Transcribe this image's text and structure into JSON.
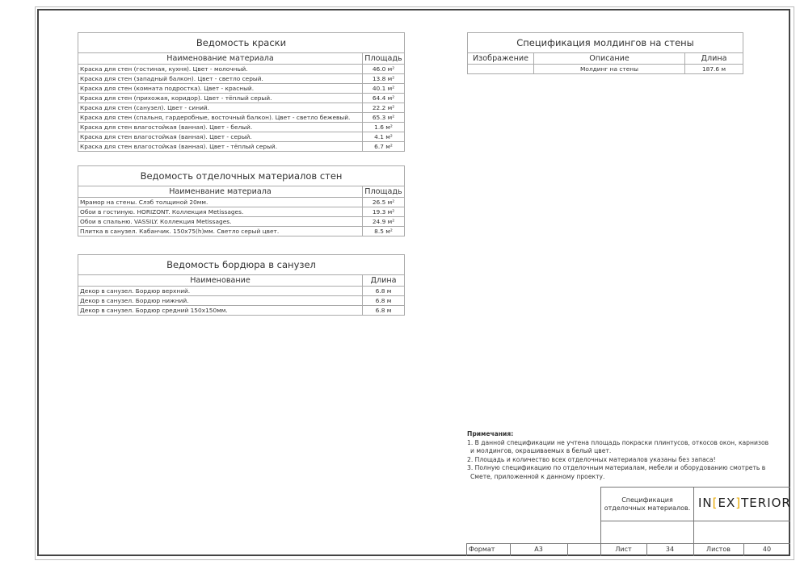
{
  "paint": {
    "title": "Ведомость краски",
    "col_name": "Наименование материала",
    "col_area": "Площадь",
    "rows": [
      [
        "Краска для стен (гостиная, кухня). Цвет - молочный.",
        "46.0 м²"
      ],
      [
        "Краска для стен (западный балкон). Цвет - светло серый.",
        "13.8 м²"
      ],
      [
        "Краска для стен (комната подростка). Цвет - красный.",
        "40.1 м²"
      ],
      [
        "Краска для стен (прихожая, коридор). Цвет - тёплый серый.",
        "64.4 м²"
      ],
      [
        "Краска для стен (санузел). Цвет - синий.",
        "22.2 м²"
      ],
      [
        "Краска для стен (спальня, гардеробные, восточный балкон). Цвет - светло бежевый.",
        "65.3 м²"
      ],
      [
        "Краска для стен влагостойкая (ванная). Цвет - белый.",
        "1.6 м²"
      ],
      [
        "Краска для стен влагостойкая (ванная). Цвет - серый.",
        "4.1 м²"
      ],
      [
        "Краска для стен влагостойкая (ванная). Цвет - тёплый серый.",
        "6.7 м²"
      ]
    ]
  },
  "finish": {
    "title": "Ведомость отделочных материалов стен",
    "col_name": "Наименвание материала",
    "col_area": "Площадь",
    "rows": [
      [
        "Мрамор на стены. Слэб толщиной 20мм.",
        "26.5 м²"
      ],
      [
        "Обои в гостиную. HORIZONT. Коллекция Metissages.",
        "19.3 м²"
      ],
      [
        "Обои в спальню. VASSILY. Коллекция Metissages.",
        "24.9 м²"
      ],
      [
        "Плитка в санузел. Кабанчик. 150x75(h)мм. Светло серый цвет.",
        "8.5 м²"
      ]
    ]
  },
  "border": {
    "title": "Ведомость бордюра в санузел",
    "col_name": "Наименование",
    "col_len": "Длина",
    "rows": [
      [
        "Декор в санузел. Бордюр верхний.",
        "6.8 м"
      ],
      [
        "Декор в санузел. Бордюр нижний.",
        "6.8 м"
      ],
      [
        "Декор в санузел. Бордюр средний 150x150мм.",
        "6.8 м"
      ]
    ]
  },
  "molding": {
    "title": "Спецификация молдингов на стены",
    "col_image": "Изображение",
    "col_desc": "Описание",
    "col_len": "Длина",
    "rows": [
      [
        "",
        "Молдинг на стены",
        "187.6 м"
      ]
    ]
  },
  "notes": {
    "heading": "Примечания:",
    "lines": [
      "1. В данной спецификации не учтена площадь покраски плинтусов, откосов окон, карнизов",
      "и молдингов, окрашиваемых в белый цвет.",
      "2. Площадь и количество всех отделочных материалов указаны без запаса!",
      "3. Полную спецификацию по отделочным материалам, мебели и оборудованию смотреть в",
      "Смете, приложенной к данному проекту."
    ]
  },
  "title_block": {
    "sheet_title": "Спецификация отделочных материалов.",
    "logo": {
      "pre": "IN",
      "b1": "[",
      "mid": "EX",
      "b2": "]",
      "post": "TERIOR",
      "accent": "#e8a800"
    },
    "format_label": "Формат",
    "format_value": "A3",
    "sheet_label": "Лист",
    "sheet_value": "34",
    "sheets_label": "Листов",
    "sheets_value": "40"
  }
}
